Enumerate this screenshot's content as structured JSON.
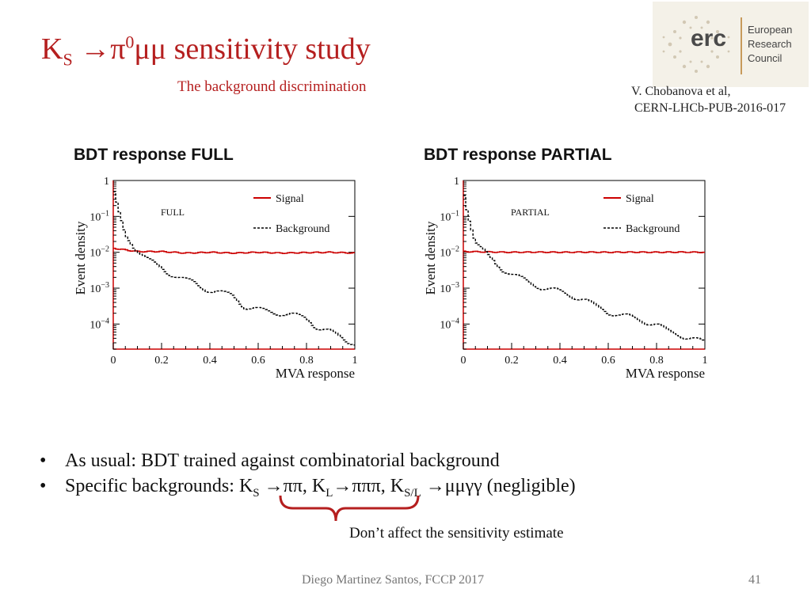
{
  "slide": {
    "title_main": "K",
    "title_sub": "S",
    "title_arrow_pi": " →π",
    "title_sup": "0",
    "title_rest": "μμ sensitivity study",
    "subtitle": "The background discrimination",
    "reference": [
      "V. Chobanova et al,",
      "CERN-LHCb-PUB-2016-017"
    ],
    "logo": {
      "word": "erc",
      "lines": [
        "European",
        "Research",
        "Council"
      ]
    },
    "bullets": [
      {
        "text": "As usual: BDT trained against combinatorial background"
      },
      {
        "parts": [
          "Specific backgrounds: K",
          "S",
          " →ππ, K",
          "L",
          "→πππ, K",
          "S/L",
          " →μμγγ (negligible)"
        ]
      }
    ],
    "note": "Don’t affect the sensitivity estimate",
    "footer": "Diego Martinez Santos, FCCP 2017",
    "page_number": "41",
    "colors": {
      "accent": "#b51f1f",
      "signal": "#cc0000",
      "background_line": "#000000"
    }
  },
  "chart_data": [
    {
      "type": "line",
      "title": "BDT response FULL",
      "label": "FULL",
      "xlabel": "MVA response",
      "ylabel": "Event density",
      "xlim": [
        0,
        1
      ],
      "ylim": [
        2e-05,
        1
      ],
      "yscale": "log",
      "xticks": [
        "0",
        "0.2",
        "0.4",
        "0.6",
        "0.8",
        "1"
      ],
      "legend": [
        "Signal",
        "Background"
      ],
      "series": [
        {
          "name": "Signal",
          "style": "solid-red",
          "x": [
            0,
            0.1,
            0.2,
            0.3,
            0.4,
            0.5,
            0.6,
            0.7,
            0.8,
            0.9,
            1.0
          ],
          "values": [
            0.013,
            0.0105,
            0.0105,
            0.0095,
            0.01,
            0.0095,
            0.01,
            0.0095,
            0.0098,
            0.01,
            0.0095
          ]
        },
        {
          "name": "Background",
          "style": "dashed-black",
          "x": [
            0,
            0.02,
            0.05,
            0.1,
            0.15,
            0.2,
            0.3,
            0.4,
            0.5,
            0.55,
            0.6,
            0.7,
            0.8,
            0.85,
            0.9,
            0.95,
            1.0
          ],
          "values": [
            0.6,
            0.15,
            0.03,
            0.012,
            0.006,
            0.0035,
            0.0017,
            0.0009,
            0.0006,
            0.0003,
            0.00025,
            0.0002,
            0.00015,
            8e-05,
            6e-05,
            4e-05,
            3e-05
          ]
        }
      ]
    },
    {
      "type": "line",
      "title": "BDT response PARTIAL",
      "label": "PARTIAL",
      "xlabel": "MVA response",
      "ylabel": "Event density",
      "xlim": [
        0,
        1
      ],
      "ylim": [
        2e-05,
        1
      ],
      "yscale": "log",
      "xticks": [
        "0",
        "0.2",
        "0.4",
        "0.6",
        "0.8",
        "1"
      ],
      "legend": [
        "Signal",
        "Background"
      ],
      "series": [
        {
          "name": "Signal",
          "style": "solid-red",
          "x": [
            0,
            0.1,
            0.2,
            0.3,
            0.4,
            0.5,
            0.6,
            0.7,
            0.8,
            0.9,
            1.0
          ],
          "values": [
            0.0105,
            0.0102,
            0.01,
            0.0101,
            0.01,
            0.0101,
            0.01,
            0.0101,
            0.01,
            0.0101,
            0.01
          ]
        },
        {
          "name": "Background",
          "style": "dashed-black",
          "x": [
            0,
            0.02,
            0.05,
            0.1,
            0.15,
            0.2,
            0.3,
            0.4,
            0.5,
            0.55,
            0.6,
            0.7,
            0.8,
            0.85,
            0.9,
            0.95,
            1.0
          ],
          "values": [
            0.7,
            0.12,
            0.02,
            0.008,
            0.004,
            0.0025,
            0.0012,
            0.0008,
            0.0005,
            0.0003,
            0.00022,
            0.00015,
            0.0001,
            6e-05,
            5e-05,
            4e-05,
            3e-05
          ]
        }
      ]
    }
  ]
}
